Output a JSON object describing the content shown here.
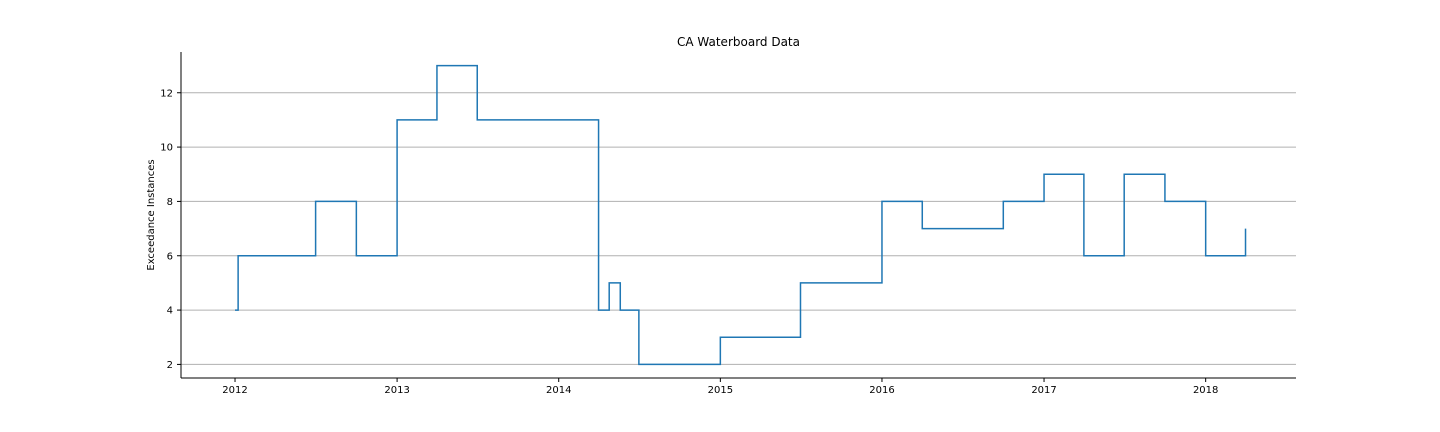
{
  "chart_data": {
    "type": "line",
    "title": "CA Waterboard Data",
    "xlabel": "",
    "ylabel": "Exceedance Instances",
    "xlim": [
      "2011-09-01",
      "2018-07-24"
    ],
    "ylim": [
      1.5,
      13.5
    ],
    "x_ticks": [
      "2012",
      "2013",
      "2014",
      "2015",
      "2016",
      "2017",
      "2018"
    ],
    "y_ticks": [
      2,
      4,
      6,
      8,
      10,
      12
    ],
    "grid": "horizontal",
    "legend": "none",
    "step": "post",
    "series": [
      {
        "color": "#1f77b4",
        "x": [
          "2012-01-01",
          "2012-01-08",
          "2012-07-01",
          "2012-10-01",
          "2013-01-01",
          "2013-04-01",
          "2013-07-01",
          "2014-04-01",
          "2014-04-25",
          "2014-05-20",
          "2014-07-01",
          "2015-01-01",
          "2015-07-01",
          "2016-01-01",
          "2016-04-01",
          "2016-10-01",
          "2017-01-01",
          "2017-04-01",
          "2017-07-01",
          "2017-10-01",
          "2018-01-01",
          "2018-04-01"
        ],
        "values": [
          4,
          6,
          8,
          6,
          11,
          13,
          11,
          4,
          5,
          4,
          2,
          3,
          5,
          8,
          7,
          8,
          9,
          6,
          9,
          8,
          6,
          7
        ]
      }
    ]
  }
}
